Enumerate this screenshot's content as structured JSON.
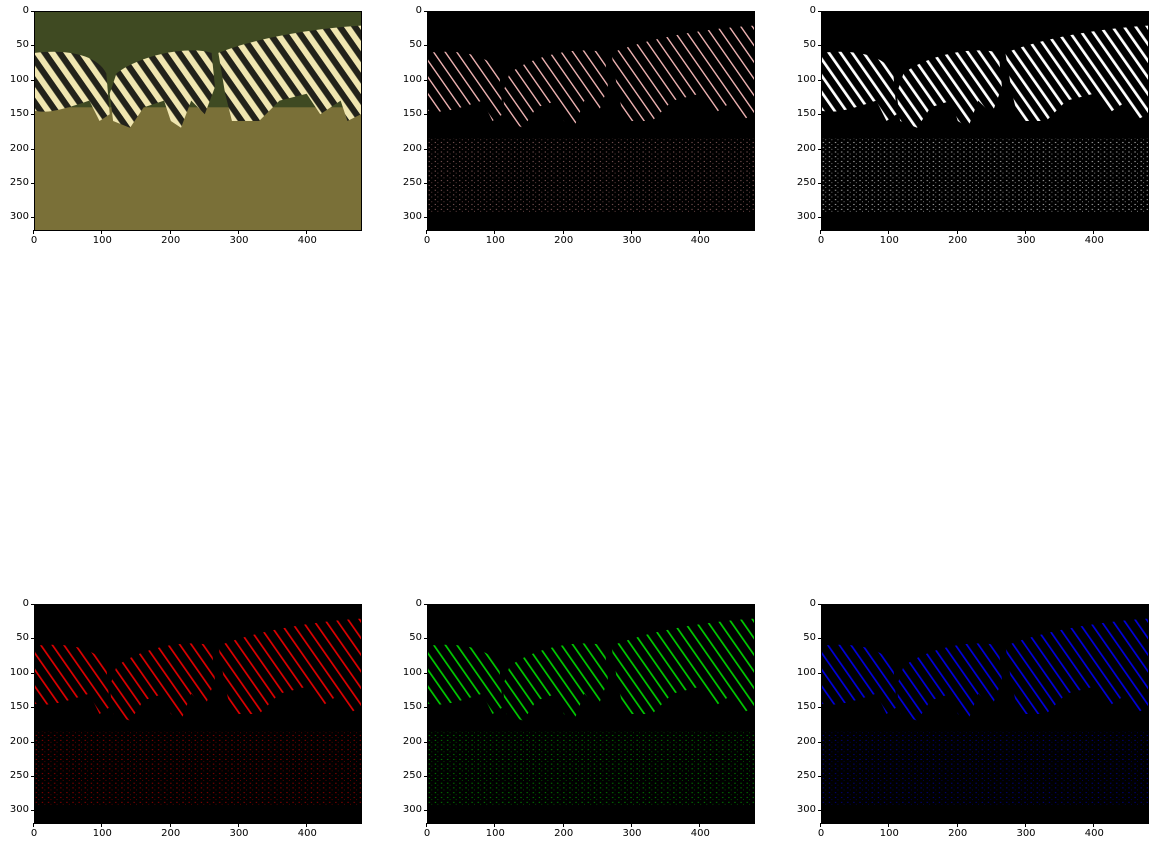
{
  "figure": {
    "axes": [
      {
        "id": "original",
        "tint": "original",
        "x_ticks": [
          "0",
          "100",
          "200",
          "300",
          "400"
        ],
        "y_ticks": [
          "0",
          "50",
          "100",
          "150",
          "200",
          "250",
          "300"
        ]
      },
      {
        "id": "edges-color",
        "tint": "#f0b0b0",
        "x_ticks": [
          "0",
          "100",
          "200",
          "300",
          "400"
        ],
        "y_ticks": [
          "0",
          "50",
          "100",
          "150",
          "200",
          "250",
          "300"
        ]
      },
      {
        "id": "edges-binary",
        "tint": "#ffffff",
        "x_ticks": [
          "0",
          "100",
          "200",
          "300",
          "400"
        ],
        "y_ticks": [
          "0",
          "50",
          "100",
          "150",
          "200",
          "250",
          "300"
        ]
      },
      {
        "id": "edges-red",
        "tint": "#e00000",
        "x_ticks": [
          "0",
          "100",
          "200",
          "300",
          "400"
        ],
        "y_ticks": [
          "0",
          "50",
          "100",
          "150",
          "200",
          "250",
          "300"
        ]
      },
      {
        "id": "edges-green",
        "tint": "#00cc00",
        "x_ticks": [
          "0",
          "100",
          "200",
          "300",
          "400"
        ],
        "y_ticks": [
          "0",
          "50",
          "100",
          "150",
          "200",
          "250",
          "300"
        ]
      },
      {
        "id": "edges-blue",
        "tint": "#0000dd",
        "x_ticks": [
          "0",
          "100",
          "200",
          "300",
          "400"
        ],
        "y_ticks": [
          "0",
          "50",
          "100",
          "150",
          "200",
          "250",
          "300"
        ]
      }
    ]
  }
}
